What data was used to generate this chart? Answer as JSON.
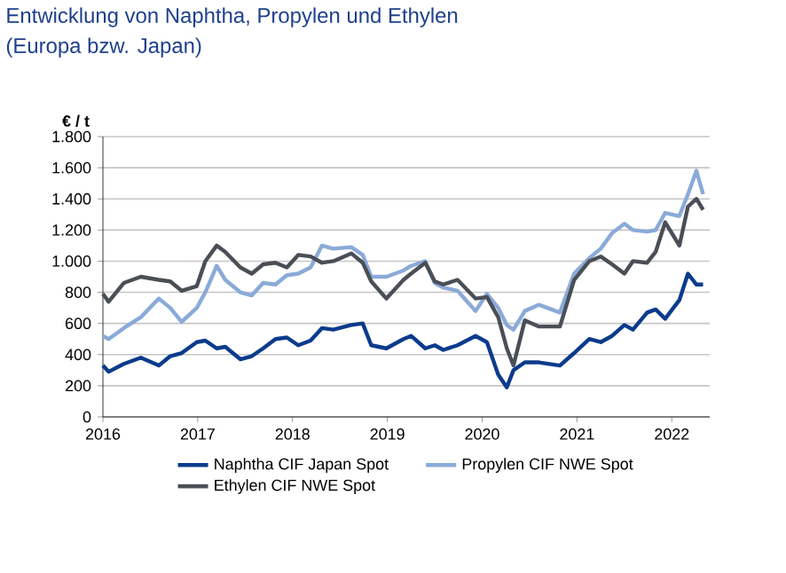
{
  "chart_data": {
    "type": "line",
    "title": "Entwicklung von Naphtha, Propylen und Ethylen",
    "subtitle": "(Europa bzw. Japan)",
    "ylabel": "€ / t",
    "x": [
      2016.0,
      2016.06,
      2016.22,
      2016.4,
      2016.59,
      2016.71,
      2016.83,
      2016.99,
      2017.08,
      2017.2,
      2017.29,
      2017.45,
      2017.57,
      2017.69,
      2017.82,
      2017.94,
      2018.06,
      2018.19,
      2018.31,
      2018.43,
      2018.62,
      2018.74,
      2018.83,
      2018.99,
      2019.17,
      2019.25,
      2019.4,
      2019.5,
      2019.59,
      2019.74,
      2019.93,
      2020.05,
      2020.17,
      2020.26,
      2020.33,
      2020.45,
      2020.6,
      2020.82,
      2020.97,
      2021.13,
      2021.25,
      2021.37,
      2021.5,
      2021.59,
      2021.74,
      2021.83,
      2021.93,
      2022.08,
      2022.17,
      2022.26,
      2022.33
    ],
    "series": [
      {
        "name": "Naphtha CIF Japan Spot",
        "color": "#0b3b8c",
        "values": [
          330,
          290,
          340,
          380,
          330,
          390,
          410,
          480,
          490,
          440,
          450,
          370,
          390,
          440,
          500,
          510,
          460,
          490,
          570,
          560,
          590,
          600,
          460,
          440,
          500,
          520,
          440,
          460,
          430,
          460,
          520,
          480,
          270,
          190,
          300,
          350,
          350,
          330,
          410,
          500,
          480,
          520,
          590,
          560,
          670,
          690,
          630,
          750,
          920,
          850,
          850
        ]
      },
      {
        "name": "Propylen CIF NWE Spot",
        "color": "#8aaad8",
        "values": [
          520,
          500,
          570,
          640,
          760,
          700,
          610,
          700,
          800,
          970,
          880,
          800,
          780,
          860,
          850,
          910,
          920,
          960,
          1100,
          1080,
          1090,
          1040,
          900,
          900,
          940,
          970,
          1000,
          860,
          830,
          810,
          680,
          790,
          700,
          590,
          560,
          680,
          720,
          670,
          920,
          1020,
          1080,
          1180,
          1240,
          1200,
          1190,
          1200,
          1310,
          1290,
          1430,
          1580,
          1430
        ]
      },
      {
        "name": "Ethylen CIF NWE Spot",
        "color": "#4a4f57",
        "values": [
          790,
          740,
          860,
          900,
          880,
          870,
          810,
          840,
          1000,
          1100,
          1060,
          960,
          920,
          980,
          990,
          960,
          1040,
          1030,
          990,
          1000,
          1050,
          990,
          870,
          760,
          880,
          920,
          990,
          870,
          850,
          880,
          760,
          770,
          640,
          440,
          330,
          620,
          580,
          580,
          880,
          1000,
          1030,
          980,
          920,
          1000,
          990,
          1060,
          1250,
          1100,
          1350,
          1400,
          1330
        ]
      }
    ],
    "xlim": [
      2016,
      2022.4
    ],
    "xticks": [
      2016,
      2017,
      2018,
      2019,
      2020,
      2021,
      2022
    ],
    "ylim": [
      0,
      1800
    ],
    "yticks": [
      0,
      200,
      400,
      600,
      800,
      {
        "value": 1000,
        "label": "1.000"
      },
      {
        "value": 1200,
        "label": "1.200"
      },
      {
        "value": 1400,
        "label": "1.400"
      },
      {
        "value": 1600,
        "label": "1.600"
      },
      {
        "value": 1800,
        "label": "1.800"
      }
    ],
    "grid": "y",
    "legend": "bottom",
    "marker": "none",
    "line_style": "solid"
  }
}
